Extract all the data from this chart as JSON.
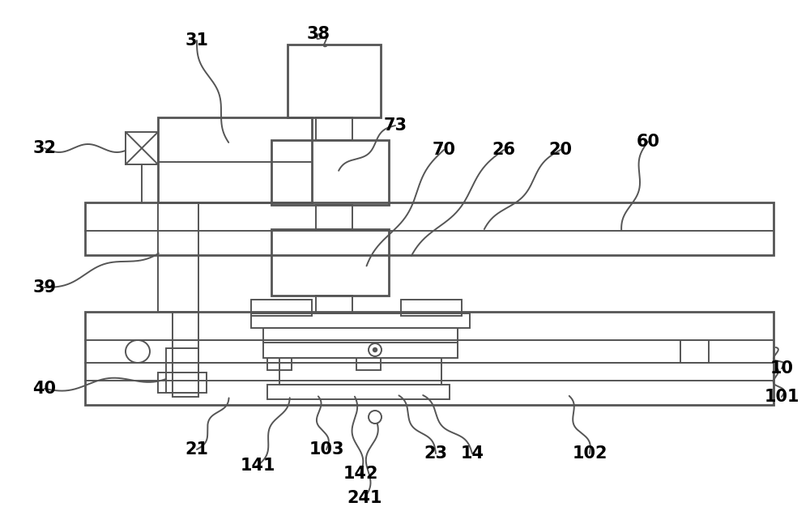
{
  "bg_color": "#ffffff",
  "line_color": "#555555",
  "lw": 1.4,
  "tlw": 2.0,
  "font_size": 15,
  "fig_w": 10.0,
  "fig_h": 6.52,
  "dpi": 100
}
